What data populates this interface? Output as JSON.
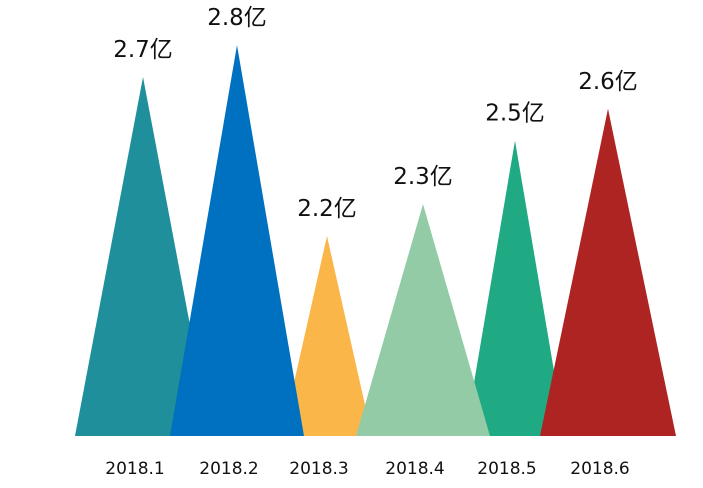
{
  "chart_data": {
    "type": "bar",
    "mark_shape": "triangle",
    "categories": [
      "2018.1",
      "2018.2",
      "2018.3",
      "2018.4",
      "2018.5",
      "2018.6"
    ],
    "values": [
      2.7,
      2.8,
      2.2,
      2.3,
      2.5,
      2.6
    ],
    "data_labels": [
      "2.7亿",
      "2.8亿",
      "2.2亿",
      "2.3亿",
      "2.5亿",
      "2.6亿"
    ],
    "unit": "亿",
    "colors": [
      "#1e8f9b",
      "#0070c0",
      "#fbb64a",
      "#93cba6",
      "#1faa83",
      "#ae2422"
    ],
    "title": "",
    "xlabel": "",
    "ylabel": "",
    "grid": false,
    "legend": "none"
  }
}
